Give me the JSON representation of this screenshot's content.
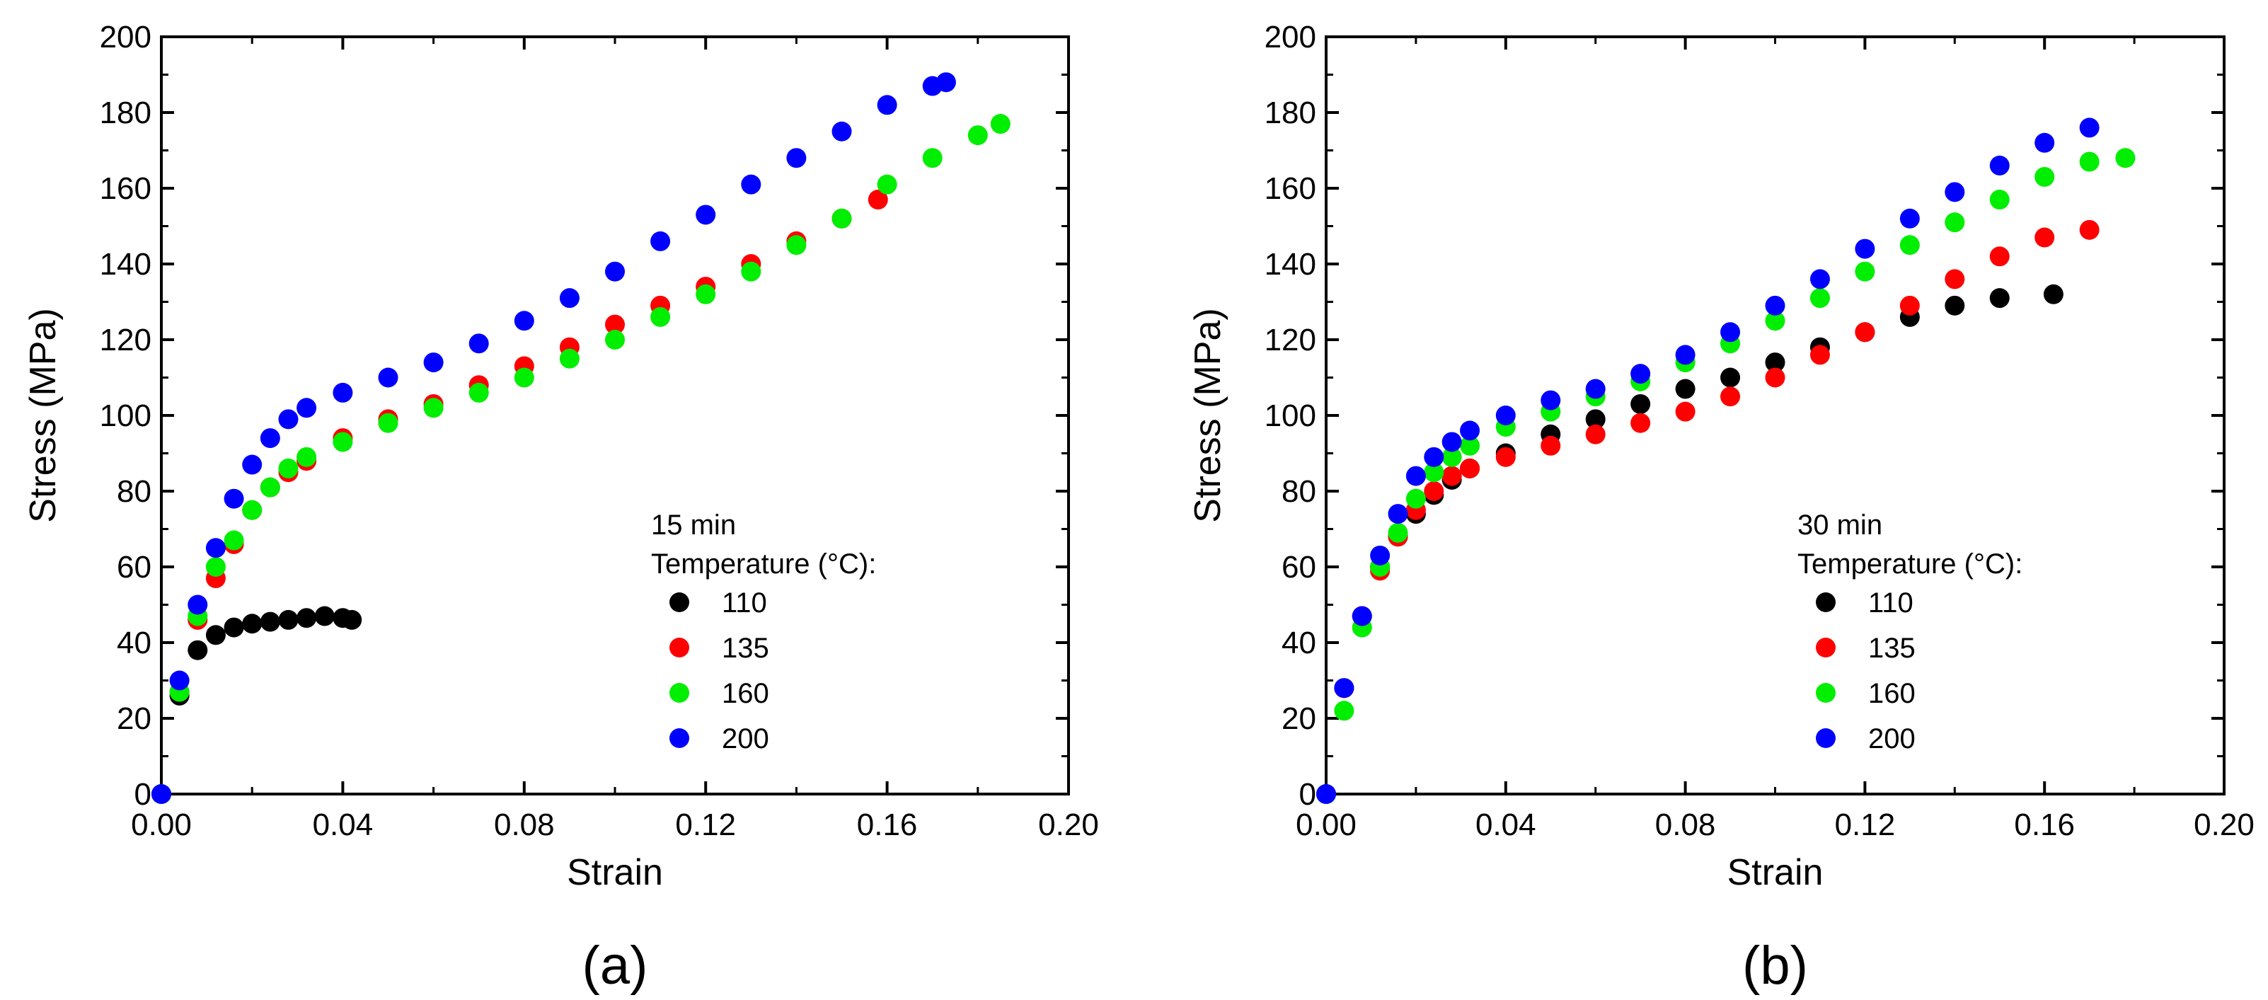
{
  "figure": {
    "panels": [
      {
        "panel_label": "(a)",
        "legend_title": "15 min",
        "legend_subtitle": "Temperature (°C):"
      },
      {
        "panel_label": "(b)",
        "legend_title": "30 min",
        "legend_subtitle": "Temperature (°C):"
      }
    ]
  },
  "colors": {
    "110": "#000000",
    "135": "#ff0000",
    "160": "#00ee00",
    "200": "#0000ff"
  },
  "chart_data": [
    {
      "type": "scatter",
      "title": "15 min",
      "panel_label": "(a)",
      "xlabel": "Strain",
      "ylabel": "Stress (MPa)",
      "xlim": [
        0,
        0.2
      ],
      "ylim": [
        0,
        200
      ],
      "xticks": [
        "0.00",
        "0.04",
        "0.08",
        "0.12",
        "0.16",
        "0.20"
      ],
      "yticks": [
        "0",
        "20",
        "40",
        "60",
        "80",
        "100",
        "120",
        "140",
        "160",
        "180",
        "200"
      ],
      "legend_title": "Temperature (°C):",
      "series": [
        {
          "name": "110",
          "x": [
            0,
            0.004,
            0.008,
            0.012,
            0.016,
            0.02,
            0.024,
            0.028,
            0.032,
            0.036,
            0.04,
            0.042
          ],
          "y": [
            0,
            26,
            38,
            42,
            44,
            45,
            45.5,
            46,
            46.5,
            47,
            46.5,
            46
          ]
        },
        {
          "name": "135",
          "x": [
            0,
            0.004,
            0.008,
            0.012,
            0.016,
            0.02,
            0.024,
            0.028,
            0.032,
            0.04,
            0.05,
            0.06,
            0.07,
            0.08,
            0.09,
            0.1,
            0.11,
            0.12,
            0.13,
            0.14,
            0.15,
            0.158
          ],
          "y": [
            0,
            27,
            46,
            57,
            66,
            75,
            81,
            85,
            88,
            94,
            99,
            103,
            108,
            113,
            118,
            124,
            129,
            134,
            140,
            146,
            152,
            157
          ]
        },
        {
          "name": "160",
          "x": [
            0,
            0.004,
            0.008,
            0.012,
            0.016,
            0.02,
            0.024,
            0.028,
            0.032,
            0.04,
            0.05,
            0.06,
            0.07,
            0.08,
            0.09,
            0.1,
            0.11,
            0.12,
            0.13,
            0.14,
            0.15,
            0.16,
            0.17,
            0.18,
            0.185
          ],
          "y": [
            0,
            27,
            47,
            60,
            67,
            75,
            81,
            86,
            89,
            93,
            98,
            102,
            106,
            110,
            115,
            120,
            126,
            132,
            138,
            145,
            152,
            161,
            168,
            174,
            177
          ]
        },
        {
          "name": "200",
          "x": [
            0,
            0.004,
            0.008,
            0.012,
            0.016,
            0.02,
            0.024,
            0.028,
            0.032,
            0.04,
            0.05,
            0.06,
            0.07,
            0.08,
            0.09,
            0.1,
            0.11,
            0.12,
            0.13,
            0.14,
            0.15,
            0.16,
            0.17,
            0.173
          ],
          "y": [
            0,
            30,
            50,
            65,
            78,
            87,
            94,
            99,
            102,
            106,
            110,
            114,
            119,
            125,
            131,
            138,
            146,
            153,
            161,
            168,
            175,
            182,
            187,
            188
          ]
        }
      ]
    },
    {
      "type": "scatter",
      "title": "30 min",
      "panel_label": "(b)",
      "xlabel": "Strain",
      "ylabel": "Stress (MPa)",
      "xlim": [
        0,
        0.2
      ],
      "ylim": [
        0,
        200
      ],
      "xticks": [
        "0.00",
        "0.04",
        "0.08",
        "0.12",
        "0.16",
        "0.20"
      ],
      "yticks": [
        "0",
        "20",
        "40",
        "60",
        "80",
        "100",
        "120",
        "140",
        "160",
        "180",
        "200"
      ],
      "legend_title": "Temperature (°C):",
      "series": [
        {
          "name": "110",
          "x": [
            0,
            0.004,
            0.008,
            0.012,
            0.016,
            0.02,
            0.024,
            0.028,
            0.032,
            0.04,
            0.05,
            0.06,
            0.07,
            0.08,
            0.09,
            0.1,
            0.11,
            0.12,
            0.13,
            0.14,
            0.15,
            0.162
          ],
          "y": [
            0,
            28,
            47,
            60,
            68,
            74,
            79,
            83,
            86,
            90,
            95,
            99,
            103,
            107,
            110,
            114,
            118,
            122,
            126,
            129,
            131,
            132
          ]
        },
        {
          "name": "135",
          "x": [
            0,
            0.004,
            0.008,
            0.012,
            0.016,
            0.02,
            0.024,
            0.028,
            0.032,
            0.04,
            0.05,
            0.06,
            0.07,
            0.08,
            0.09,
            0.1,
            0.11,
            0.12,
            0.13,
            0.14,
            0.15,
            0.16,
            0.17
          ],
          "y": [
            0,
            28,
            47,
            59,
            68,
            75,
            80,
            84,
            86,
            89,
            92,
            95,
            98,
            101,
            105,
            110,
            116,
            122,
            129,
            136,
            142,
            147,
            149
          ]
        },
        {
          "name": "160",
          "x": [
            0,
            0.004,
            0.008,
            0.012,
            0.016,
            0.02,
            0.024,
            0.028,
            0.032,
            0.04,
            0.05,
            0.06,
            0.07,
            0.08,
            0.09,
            0.1,
            0.11,
            0.12,
            0.13,
            0.14,
            0.15,
            0.16,
            0.17,
            0.178
          ],
          "y": [
            0,
            22,
            44,
            60,
            69,
            78,
            85,
            89,
            92,
            97,
            101,
            105,
            109,
            114,
            119,
            125,
            131,
            138,
            145,
            151,
            157,
            163,
            167,
            168
          ]
        },
        {
          "name": "200",
          "x": [
            0,
            0.004,
            0.008,
            0.012,
            0.016,
            0.02,
            0.024,
            0.028,
            0.032,
            0.04,
            0.05,
            0.06,
            0.07,
            0.08,
            0.09,
            0.1,
            0.11,
            0.12,
            0.13,
            0.14,
            0.15,
            0.16,
            0.17
          ],
          "y": [
            0,
            28,
            47,
            63,
            74,
            84,
            89,
            93,
            96,
            100,
            104,
            107,
            111,
            116,
            122,
            129,
            136,
            144,
            152,
            159,
            166,
            172,
            176
          ]
        }
      ]
    }
  ]
}
